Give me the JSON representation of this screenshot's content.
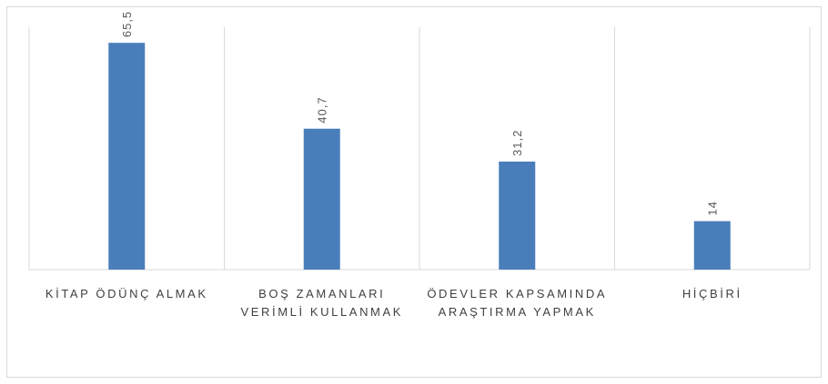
{
  "chart_data": {
    "type": "bar",
    "categories": [
      "KİTAP ÖDÜNÇ ALMAK",
      "BOŞ ZAMANLARI VERİMLİ KULLANMAK",
      "ÖDEVLER KAPSAMINDA ARAŞTIRMA YAPMAK",
      "HİÇBİRİ"
    ],
    "values": [
      65.5,
      40.7,
      31.2,
      14
    ],
    "value_labels": [
      "65,5",
      "40,7",
      "31,2",
      "14"
    ],
    "color": "#4a7ebb",
    "ylim": [
      0,
      70
    ]
  }
}
